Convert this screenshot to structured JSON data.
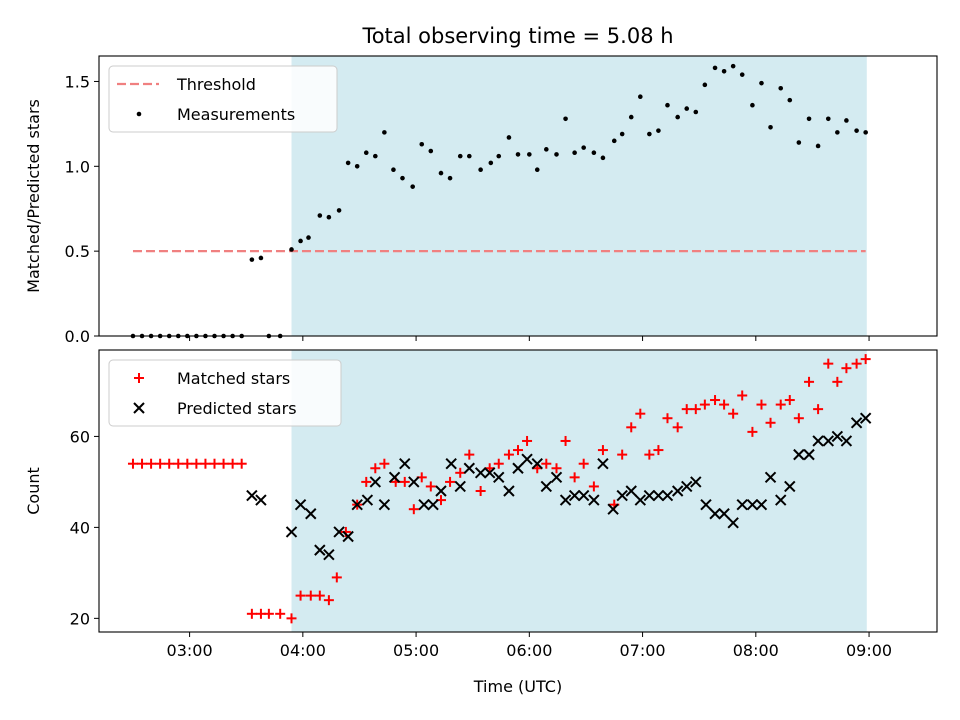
{
  "chart_data": {
    "title": "Total observing time = 5.08 h",
    "xlabel": "Time (UTC)",
    "x_ticks": [
      "03:00",
      "04:00",
      "05:00",
      "06:00",
      "07:00",
      "08:00",
      "09:00"
    ],
    "x_tick_hours": [
      3,
      4,
      5,
      6,
      7,
      8,
      9
    ],
    "xlim_hours": [
      2.2,
      9.6
    ],
    "shaded_region_hours": [
      3.9,
      8.98
    ],
    "shade_color": "#d4ebf1",
    "panels": [
      {
        "type": "scatter",
        "ylabel": "Matched/Predicted stars",
        "ylim": [
          0,
          1.65
        ],
        "y_ticks": [
          0.0,
          0.5,
          1.0,
          1.5
        ],
        "y_tick_labels": [
          "0.0",
          "0.5",
          "1.0",
          "1.5"
        ],
        "legend_position": "top-left",
        "threshold": {
          "name": "Threshold",
          "value": 0.5,
          "x_hours": [
            2.5,
            8.97
          ],
          "color": "#f08080"
        },
        "series": [
          {
            "name": "Measurements",
            "marker": "dot",
            "color": "#000000",
            "points": [
              [
                2.5,
                0
              ],
              [
                2.58,
                0
              ],
              [
                2.66,
                0
              ],
              [
                2.74,
                0
              ],
              [
                2.82,
                0
              ],
              [
                2.9,
                0
              ],
              [
                2.98,
                0
              ],
              [
                3.06,
                0
              ],
              [
                3.14,
                0
              ],
              [
                3.22,
                0
              ],
              [
                3.3,
                0
              ],
              [
                3.38,
                0
              ],
              [
                3.46,
                0
              ],
              [
                3.55,
                0.45
              ],
              [
                3.63,
                0.46
              ],
              [
                3.7,
                0
              ],
              [
                3.8,
                0
              ],
              [
                3.9,
                0.51
              ],
              [
                3.98,
                0.56
              ],
              [
                4.05,
                0.58
              ],
              [
                4.15,
                0.71
              ],
              [
                4.23,
                0.7
              ],
              [
                4.32,
                0.74
              ],
              [
                4.4,
                1.02
              ],
              [
                4.48,
                1.0
              ],
              [
                4.56,
                1.08
              ],
              [
                4.64,
                1.06
              ],
              [
                4.72,
                1.2
              ],
              [
                4.8,
                0.98
              ],
              [
                4.88,
                0.93
              ],
              [
                4.97,
                0.88
              ],
              [
                5.05,
                1.13
              ],
              [
                5.13,
                1.09
              ],
              [
                5.22,
                0.96
              ],
              [
                5.3,
                0.93
              ],
              [
                5.39,
                1.06
              ],
              [
                5.47,
                1.06
              ],
              [
                5.57,
                0.98
              ],
              [
                5.66,
                1.02
              ],
              [
                5.73,
                1.06
              ],
              [
                5.82,
                1.17
              ],
              [
                5.9,
                1.07
              ],
              [
                6.0,
                1.07
              ],
              [
                6.07,
                0.98
              ],
              [
                6.15,
                1.1
              ],
              [
                6.24,
                1.07
              ],
              [
                6.32,
                1.28
              ],
              [
                6.4,
                1.08
              ],
              [
                6.48,
                1.11
              ],
              [
                6.57,
                1.08
              ],
              [
                6.65,
                1.05
              ],
              [
                6.75,
                1.15
              ],
              [
                6.82,
                1.19
              ],
              [
                6.9,
                1.29
              ],
              [
                6.98,
                1.41
              ],
              [
                7.06,
                1.19
              ],
              [
                7.14,
                1.21
              ],
              [
                7.22,
                1.36
              ],
              [
                7.31,
                1.29
              ],
              [
                7.39,
                1.34
              ],
              [
                7.47,
                1.32
              ],
              [
                7.55,
                1.48
              ],
              [
                7.64,
                1.58
              ],
              [
                7.72,
                1.56
              ],
              [
                7.8,
                1.59
              ],
              [
                7.88,
                1.54
              ],
              [
                7.97,
                1.36
              ],
              [
                8.05,
                1.49
              ],
              [
                8.13,
                1.23
              ],
              [
                8.22,
                1.46
              ],
              [
                8.3,
                1.39
              ],
              [
                8.38,
                1.14
              ],
              [
                8.47,
                1.28
              ],
              [
                8.55,
                1.12
              ],
              [
                8.64,
                1.28
              ],
              [
                8.72,
                1.2
              ],
              [
                8.8,
                1.27
              ],
              [
                8.89,
                1.21
              ],
              [
                8.97,
                1.2
              ]
            ]
          }
        ]
      },
      {
        "type": "scatter",
        "ylabel": "Count",
        "ylim": [
          17,
          79
        ],
        "y_ticks": [
          20,
          40,
          60
        ],
        "y_tick_labels": [
          "20",
          "40",
          "60"
        ],
        "legend_position": "top-left",
        "series": [
          {
            "name": "Matched stars",
            "marker": "plus",
            "color": "#ff0000",
            "points": [
              [
                2.5,
                54
              ],
              [
                2.58,
                54
              ],
              [
                2.66,
                54
              ],
              [
                2.74,
                54
              ],
              [
                2.82,
                54
              ],
              [
                2.9,
                54
              ],
              [
                2.98,
                54
              ],
              [
                3.06,
                54
              ],
              [
                3.14,
                54
              ],
              [
                3.22,
                54
              ],
              [
                3.3,
                54
              ],
              [
                3.38,
                54
              ],
              [
                3.46,
                54
              ],
              [
                3.55,
                21
              ],
              [
                3.63,
                21
              ],
              [
                3.7,
                21
              ],
              [
                3.8,
                21
              ],
              [
                3.9,
                20
              ],
              [
                3.98,
                25
              ],
              [
                4.07,
                25
              ],
              [
                4.15,
                25
              ],
              [
                4.23,
                24
              ],
              [
                4.3,
                29
              ],
              [
                4.38,
                39
              ],
              [
                4.48,
                45
              ],
              [
                4.56,
                50
              ],
              [
                4.64,
                53
              ],
              [
                4.72,
                54
              ],
              [
                4.82,
                50
              ],
              [
                4.9,
                50
              ],
              [
                4.98,
                44
              ],
              [
                5.05,
                51
              ],
              [
                5.13,
                49
              ],
              [
                5.22,
                46
              ],
              [
                5.3,
                50
              ],
              [
                5.39,
                52
              ],
              [
                5.47,
                56
              ],
              [
                5.57,
                48
              ],
              [
                5.65,
                53
              ],
              [
                5.73,
                54
              ],
              [
                5.82,
                56
              ],
              [
                5.9,
                57
              ],
              [
                5.98,
                59
              ],
              [
                6.07,
                53
              ],
              [
                6.15,
                54
              ],
              [
                6.24,
                53
              ],
              [
                6.32,
                59
              ],
              [
                6.4,
                51
              ],
              [
                6.48,
                54
              ],
              [
                6.57,
                49
              ],
              [
                6.65,
                57
              ],
              [
                6.75,
                45
              ],
              [
                6.82,
                56
              ],
              [
                6.9,
                62
              ],
              [
                6.98,
                65
              ],
              [
                7.06,
                56
              ],
              [
                7.14,
                57
              ],
              [
                7.22,
                64
              ],
              [
                7.31,
                62
              ],
              [
                7.39,
                66
              ],
              [
                7.47,
                66
              ],
              [
                7.55,
                67
              ],
              [
                7.64,
                68
              ],
              [
                7.72,
                67
              ],
              [
                7.8,
                65
              ],
              [
                7.88,
                69
              ],
              [
                7.97,
                61
              ],
              [
                8.05,
                67
              ],
              [
                8.13,
                63
              ],
              [
                8.22,
                67
              ],
              [
                8.3,
                68
              ],
              [
                8.38,
                64
              ],
              [
                8.47,
                72
              ],
              [
                8.55,
                66
              ],
              [
                8.64,
                76
              ],
              [
                8.72,
                72
              ],
              [
                8.8,
                75
              ],
              [
                8.89,
                76
              ],
              [
                8.97,
                77
              ]
            ]
          },
          {
            "name": "Predicted stars",
            "marker": "x",
            "color": "#000000",
            "points": [
              [
                3.55,
                47
              ],
              [
                3.63,
                46
              ],
              [
                3.9,
                39
              ],
              [
                3.98,
                45
              ],
              [
                4.07,
                43
              ],
              [
                4.15,
                35
              ],
              [
                4.23,
                34
              ],
              [
                4.32,
                39
              ],
              [
                4.4,
                38
              ],
              [
                4.48,
                45
              ],
              [
                4.57,
                46
              ],
              [
                4.64,
                50
              ],
              [
                4.72,
                45
              ],
              [
                4.81,
                51
              ],
              [
                4.9,
                54
              ],
              [
                4.98,
                50
              ],
              [
                5.07,
                45
              ],
              [
                5.15,
                45
              ],
              [
                5.22,
                48
              ],
              [
                5.31,
                54
              ],
              [
                5.39,
                49
              ],
              [
                5.47,
                53
              ],
              [
                5.57,
                52
              ],
              [
                5.65,
                52
              ],
              [
                5.73,
                51
              ],
              [
                5.82,
                48
              ],
              [
                5.9,
                53
              ],
              [
                5.98,
                55
              ],
              [
                6.07,
                54
              ],
              [
                6.15,
                49
              ],
              [
                6.24,
                51
              ],
              [
                6.32,
                46
              ],
              [
                6.4,
                47
              ],
              [
                6.48,
                47
              ],
              [
                6.57,
                46
              ],
              [
                6.65,
                54
              ],
              [
                6.74,
                44
              ],
              [
                6.82,
                47
              ],
              [
                6.9,
                48
              ],
              [
                6.98,
                46
              ],
              [
                7.06,
                47
              ],
              [
                7.14,
                47
              ],
              [
                7.22,
                47
              ],
              [
                7.31,
                48
              ],
              [
                7.39,
                49
              ],
              [
                7.47,
                50
              ],
              [
                7.56,
                45
              ],
              [
                7.64,
                43
              ],
              [
                7.72,
                43
              ],
              [
                7.8,
                41
              ],
              [
                7.88,
                45
              ],
              [
                7.97,
                45
              ],
              [
                8.05,
                45
              ],
              [
                8.13,
                51
              ],
              [
                8.22,
                46
              ],
              [
                8.3,
                49
              ],
              [
                8.38,
                56
              ],
              [
                8.47,
                56
              ],
              [
                8.55,
                59
              ],
              [
                8.64,
                59
              ],
              [
                8.72,
                60
              ],
              [
                8.8,
                59
              ],
              [
                8.89,
                63
              ],
              [
                8.97,
                64
              ]
            ]
          }
        ]
      }
    ]
  }
}
